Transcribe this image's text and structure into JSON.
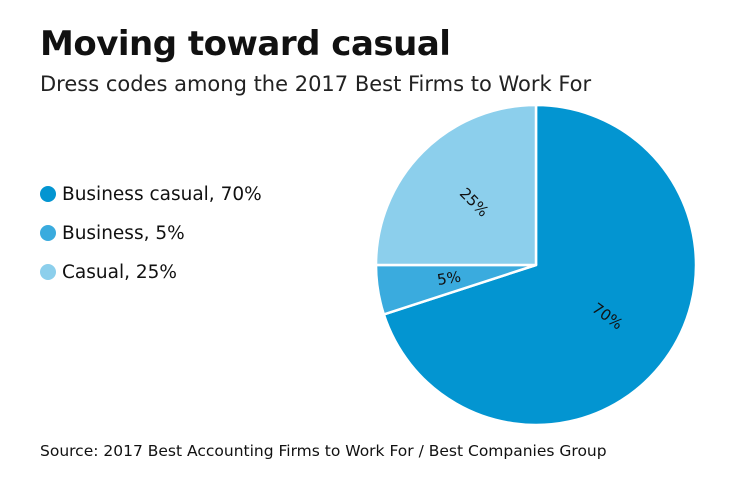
{
  "header": {
    "title": "Moving toward casual",
    "subtitle": "Dress codes among the 2017 Best Firms to Work For"
  },
  "legend": [
    {
      "label": "Business casual, 70%",
      "color": "#0395d1"
    },
    {
      "label": "Business, 5%",
      "color": "#3aabde"
    },
    {
      "label": "Casual, 25%",
      "color": "#8ccfec"
    }
  ],
  "slice_labels": [
    "70%",
    "5%",
    "25%"
  ],
  "footer": {
    "source": "Source: 2017 Best Accounting Firms to Work For / Best Companies Group"
  },
  "chart_data": {
    "type": "pie",
    "title": "Moving toward casual",
    "subtitle": "Dress codes among the 2017 Best Firms to Work For",
    "categories": [
      "Business casual",
      "Business",
      "Casual"
    ],
    "values": [
      70,
      5,
      25
    ],
    "unit": "%",
    "colors": [
      "#0395d1",
      "#3aabde",
      "#8ccfec"
    ],
    "start_angle_deg": 0,
    "direction": "clockwise",
    "data_labels": [
      "70%",
      "5%",
      "25%"
    ],
    "legend_position": "left",
    "source": "Source: 2017 Best Accounting Firms to Work For / Best Companies Group"
  }
}
